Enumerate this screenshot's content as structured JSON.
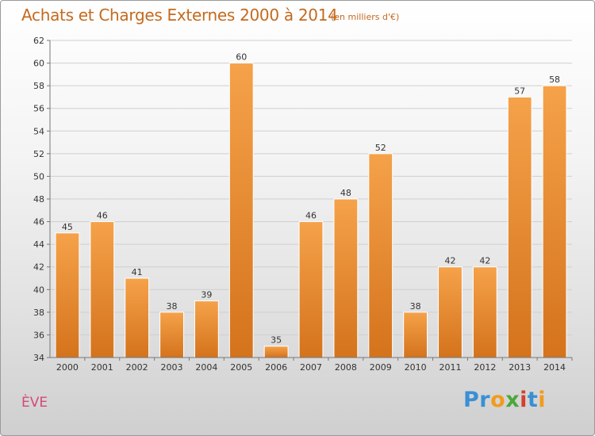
{
  "header": {
    "title": "Achats et Charges Externes 2000 à 2014",
    "unit": "(en milliers d'€)"
  },
  "footer": {
    "town": "ÈVE",
    "logo_letters": [
      {
        "char": "P",
        "color": "#3a8fd4"
      },
      {
        "char": "r",
        "color": "#3a8fd4"
      },
      {
        "char": "o",
        "color": "#f29b1c"
      },
      {
        "char": "x",
        "color": "#4aa83a"
      },
      {
        "char": "i",
        "color": "#d4402e"
      },
      {
        "char": "t",
        "color": "#3a8fd4"
      },
      {
        "char": "i",
        "color": "#f29b1c"
      }
    ]
  },
  "colors": {
    "bar_light": "#f5a24a",
    "bar_dark": "#d4731c",
    "grid": "#cfcfcf",
    "axis": "#777777"
  },
  "chart_data": {
    "type": "bar",
    "title": "Achats et Charges Externes 2000 à 2014",
    "subtitle": "(en milliers d'€)",
    "xlabel": "",
    "ylabel": "",
    "categories": [
      "2000",
      "2001",
      "2002",
      "2003",
      "2004",
      "2005",
      "2006",
      "2007",
      "2008",
      "2009",
      "2010",
      "2011",
      "2012",
      "2013",
      "2014"
    ],
    "values": [
      45,
      46,
      41,
      38,
      39,
      60,
      35,
      46,
      48,
      52,
      38,
      42,
      42,
      57,
      58
    ],
    "ylim": [
      34,
      62
    ],
    "yticks": [
      34,
      36,
      38,
      40,
      42,
      44,
      46,
      48,
      50,
      52,
      54,
      56,
      58,
      60,
      62
    ],
    "grid": true,
    "legend": "none"
  }
}
